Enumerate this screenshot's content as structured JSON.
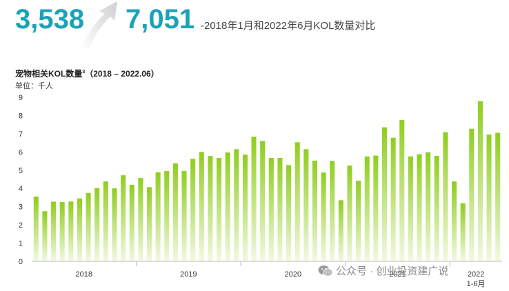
{
  "header": {
    "start_value": "3,538",
    "end_value": "7,051",
    "headline": "-2018年1月和2022年6月KOL数量对比",
    "accent_color": "#1aa3b8"
  },
  "chart_title": "宠物相关KOL数量",
  "chart_title_sup": "3",
  "chart_title_range": "（2018 – 2022.06）",
  "unit_label": "单位：千人",
  "watermark": "公众号 · 创业投资建广说",
  "chart_data": {
    "type": "bar",
    "title": "宠物相关KOL数量³（2018 – 2022.06）",
    "ylabel": "单位：千人",
    "xlabel": "",
    "ylim": [
      0,
      9
    ],
    "yticks": [
      0,
      1,
      2,
      3,
      4,
      5,
      6,
      7,
      8,
      9
    ],
    "grid": false,
    "bar_color_top": "#8fce1e",
    "bar_color_bottom": "#f1f9e1",
    "year_groups": [
      {
        "label": "2018",
        "count": 12
      },
      {
        "label": "2019",
        "count": 12
      },
      {
        "label": "2020",
        "count": 12
      },
      {
        "label": "2021",
        "count": 12
      },
      {
        "label": "2022",
        "sublabel": "1-6月",
        "count": 6
      }
    ],
    "values": [
      3.55,
      2.75,
      3.27,
      3.25,
      3.28,
      3.45,
      3.75,
      4.02,
      4.38,
      4.0,
      4.72,
      4.2,
      4.57,
      4.07,
      4.88,
      4.95,
      5.37,
      4.95,
      5.62,
      6.0,
      5.78,
      5.67,
      5.97,
      6.15,
      5.85,
      6.83,
      6.6,
      5.67,
      5.67,
      5.28,
      6.53,
      6.15,
      5.52,
      4.87,
      5.5,
      3.35,
      5.25,
      4.42,
      5.75,
      5.8,
      7.35,
      6.78,
      7.75,
      5.75,
      5.87,
      5.98,
      5.78,
      7.08,
      4.38,
      3.18,
      7.27,
      8.78,
      6.95,
      7.05
    ]
  }
}
